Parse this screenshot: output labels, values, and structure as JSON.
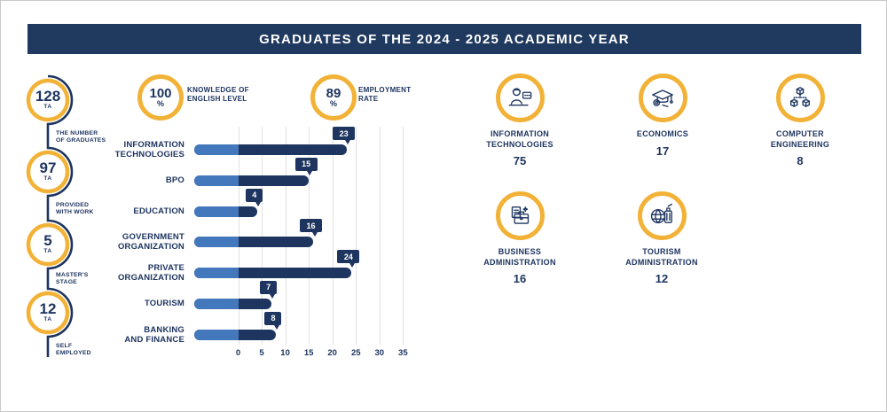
{
  "title": "GRADUATES OF THE 2024 - 2025 ACADEMIC YEAR",
  "colors": {
    "navy": "#1e3560",
    "title_bar": "#20395e",
    "light_blue": "#4478bc",
    "yellow": "#f2b237",
    "grid": "#e0e0e0",
    "background": "#ffffff"
  },
  "left_rail": {
    "items": [
      {
        "value": "128",
        "unit": "TA",
        "label": "THE NUMBER OF GRADUATES",
        "label_lines": [
          "THE NUMBER",
          "OF GRADUATES"
        ]
      },
      {
        "value": "97",
        "unit": "TA",
        "label": "PROVIDED WITH WORK",
        "label_lines": [
          "PROVIDED",
          "WITH WORK"
        ]
      },
      {
        "value": "5",
        "unit": "TA",
        "label": "MASTER'S STAGE",
        "label_lines": [
          "MASTER'S",
          "STAGE"
        ]
      },
      {
        "value": "12",
        "unit": "TA",
        "label": "SELF EMPLOYED",
        "label_lines": [
          "SELF",
          "EMPLOYED"
        ]
      }
    ]
  },
  "stats": [
    {
      "value": "100",
      "unit": "%",
      "label": "KNOWLEDGE OF ENGLISH LEVEL",
      "label_lines": [
        "KNOWLEDGE OF",
        "ENGLISH LEVEL"
      ]
    },
    {
      "value": "89",
      "unit": "%",
      "label": "EMPLOYMENT RATE",
      "label_lines": [
        "EMPLOYMENT",
        "RATE"
      ]
    }
  ],
  "chart_data": {
    "type": "bar",
    "orientation": "horizontal",
    "categories": [
      "INFORMATION TECHNOLOGIES",
      "BPO",
      "EDUCATION",
      "GOVERNMENT ORGANIZATION",
      "PRIVATE ORGANIZATION",
      "TOURISM",
      "BANKING AND FINANCE"
    ],
    "categories_lines": [
      [
        "INFORMATION",
        "TECHNOLOGIES"
      ],
      [
        "BPO"
      ],
      [
        "EDUCATION"
      ],
      [
        "GOVERNMENT",
        "ORGANIZATION"
      ],
      [
        "PRIVATE",
        "ORGANIZATION"
      ],
      [
        "TOURISM"
      ],
      [
        "BANKING",
        "AND FINANCE"
      ]
    ],
    "values": [
      23,
      15,
      4,
      16,
      24,
      7,
      8
    ],
    "xlim": [
      0,
      35
    ],
    "xticks": [
      "0",
      "5",
      "10",
      "15",
      "20",
      "25",
      "30",
      "35"
    ],
    "grid": true,
    "value_labels": true,
    "bar_color": "#1e3560",
    "lead_color": "#4478bc"
  },
  "majors": [
    {
      "icon": "it-specialist-icon",
      "label": "INFORMATION TECHNOLOGIES",
      "label_lines": [
        "INFORMATION",
        "TECHNOLOGIES"
      ],
      "value": "75"
    },
    {
      "icon": "economics-icon",
      "label": "ECONOMICS",
      "label_lines": [
        "ECONOMICS"
      ],
      "value": "17"
    },
    {
      "icon": "computer-engineering-icon",
      "label": "COMPUTER ENGINEERING",
      "label_lines": [
        "COMPUTER",
        "ENGINEERING"
      ],
      "value": "8"
    },
    {
      "icon": "business-admin-icon",
      "label": "BUSINESS ADMINISTRATION",
      "label_lines": [
        "BUSINESS",
        "ADMINISTRATION"
      ],
      "value": "16"
    },
    {
      "icon": "tourism-admin-icon",
      "label": "TOURISM ADMINISTRATION",
      "label_lines": [
        "TOURISM",
        "ADMINISTRATION"
      ],
      "value": "12"
    }
  ]
}
